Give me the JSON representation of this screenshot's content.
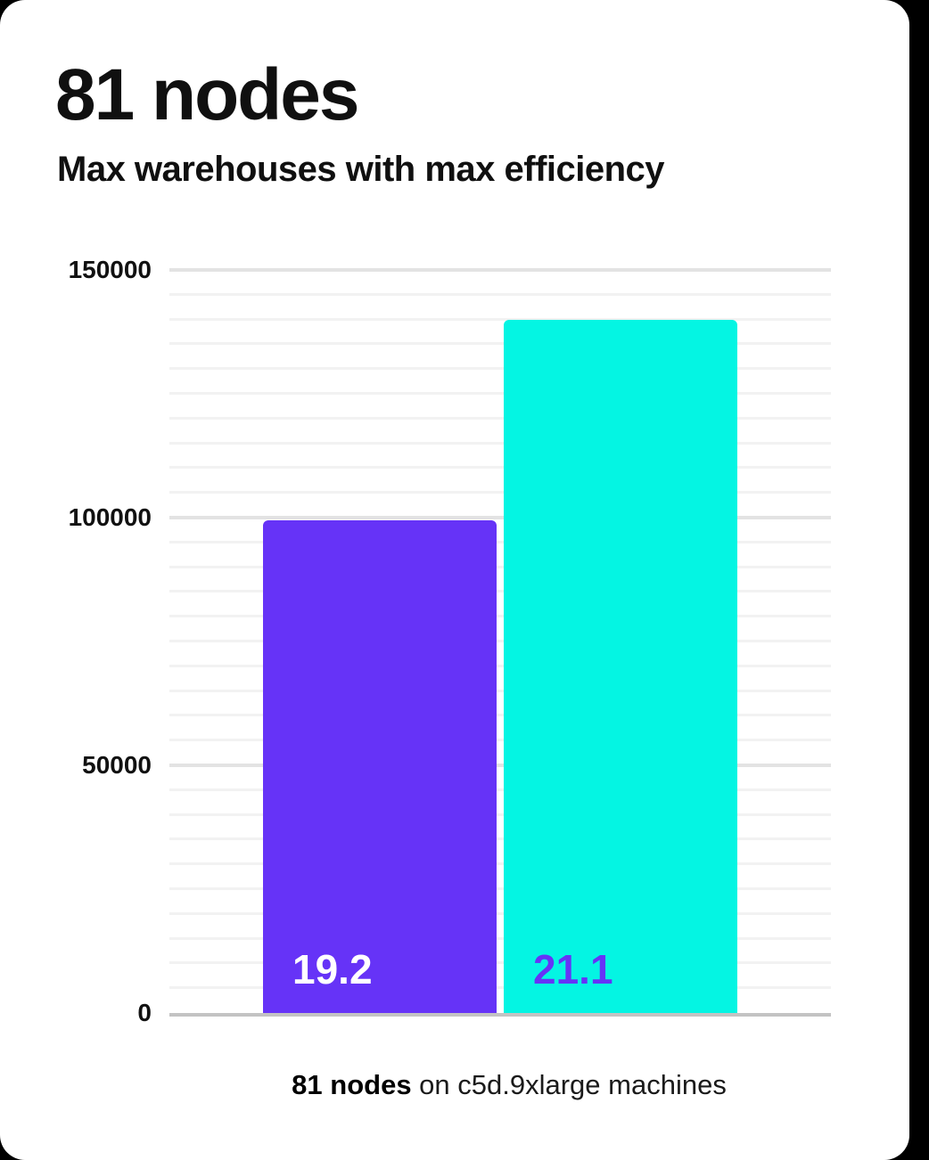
{
  "header": {
    "title": "81 nodes",
    "subtitle": "Max warehouses with max efficiency"
  },
  "caption": {
    "bold": "81 nodes",
    "rest": " on c5d.9xlarge machines"
  },
  "colors": {
    "page_bg": "#000000",
    "card_bg": "#ffffff",
    "purple": "#6633F7",
    "cyan": "#04F5E3",
    "axis_line": "#c3c3c3",
    "major_gridline": "#e3e3e3",
    "minor_gridline": "#f2f2f2",
    "text": "#101010"
  },
  "chart_data": {
    "type": "bar",
    "title": "81 nodes",
    "subtitle": "Max warehouses with max efficiency",
    "xlabel": "",
    "ylabel": "",
    "ylim": [
      0,
      150000
    ],
    "yticks": [
      {
        "value": 0,
        "label": "0"
      },
      {
        "value": 50000,
        "label": "50000"
      },
      {
        "value": 100000,
        "label": "100000"
      },
      {
        "value": 150000,
        "label": "150000"
      }
    ],
    "minor_gridline_step": 5000,
    "grid": true,
    "legend": false,
    "categories": [
      "bar-1",
      "bar-2"
    ],
    "bars": [
      {
        "name": "bar-purple",
        "value": 99500,
        "display_label": "19.2",
        "color": "#6633F7",
        "label_color": "#ffffff"
      },
      {
        "name": "bar-cyan",
        "value": 140000,
        "display_label": "21.1",
        "color": "#04F5E3",
        "label_color": "#6633F7"
      }
    ],
    "footnote": "81 nodes on c5d.9xlarge machines"
  }
}
